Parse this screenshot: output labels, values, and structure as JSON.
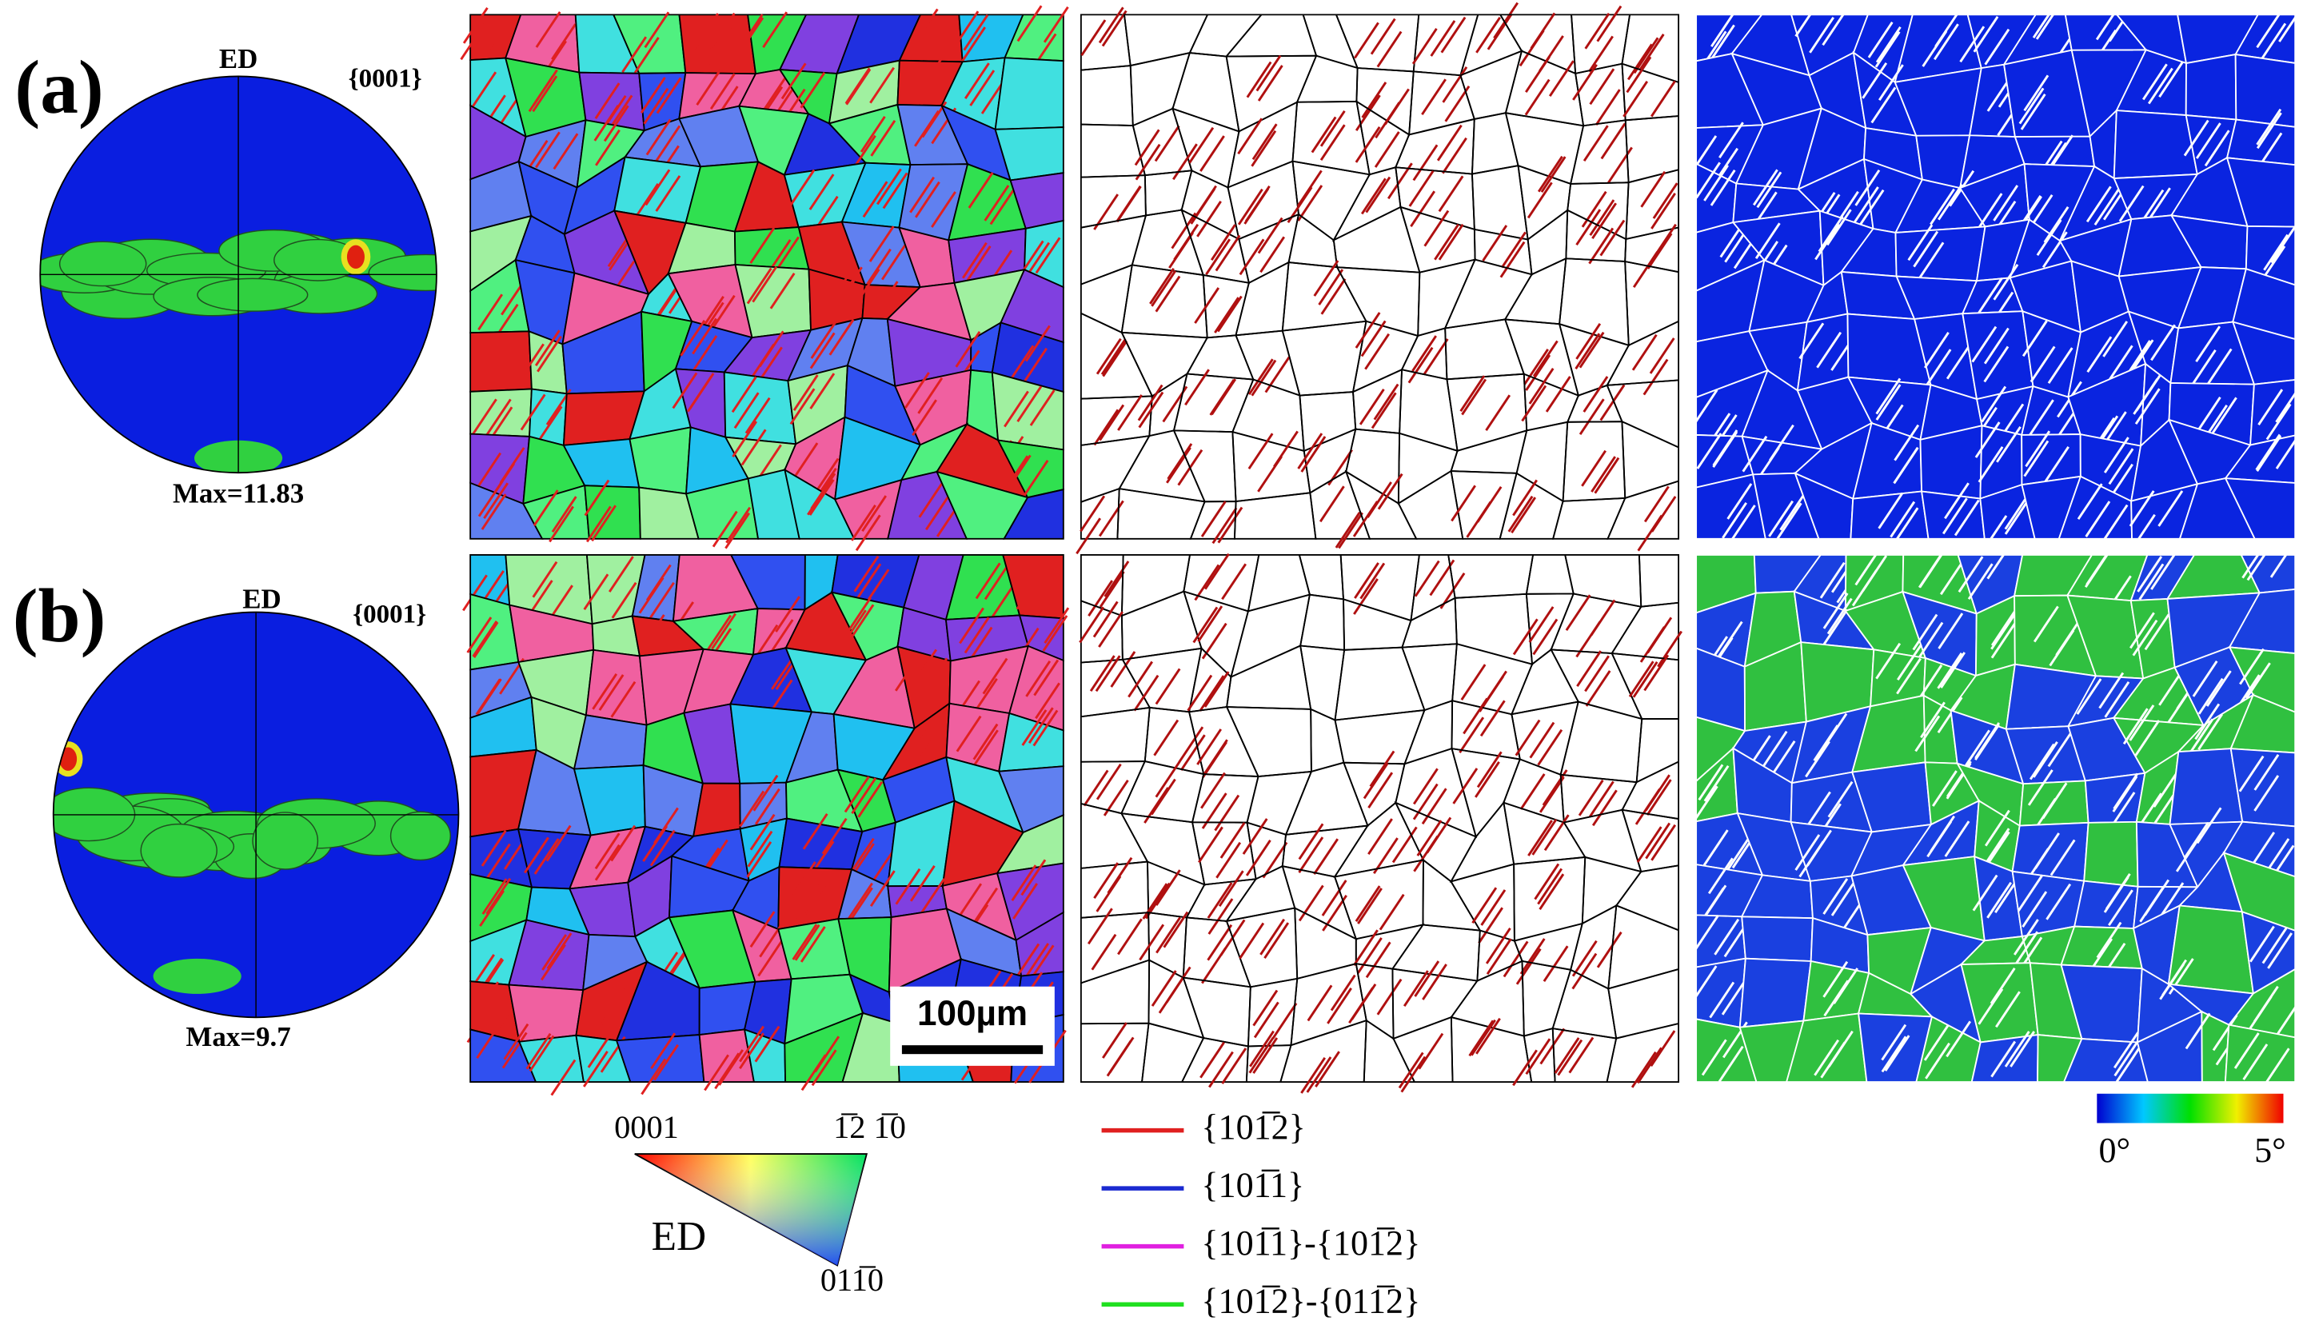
{
  "figure": {
    "rows": [
      {
        "label": "(a)",
        "pole_figure": {
          "direction": "ED",
          "plane": "{0001}",
          "max": "Max=11.83"
        }
      },
      {
        "label": "(b)",
        "pole_figure": {
          "direction": "ED",
          "plane": "{0001}",
          "max": "Max=9.7"
        }
      }
    ],
    "scale_bar": "100µm",
    "ipf_key": {
      "top_left": "0001",
      "top_right": "1̅2 1̅0",
      "axis": "ED",
      "bottom": "011̅0"
    },
    "boundary_legend": [
      {
        "label": "{101̅2}",
        "color": "#e02020"
      },
      {
        "label": "{101̅1}",
        "color": "#1a2ad0"
      },
      {
        "label": "{101̅1}-{101̅2}",
        "color": "#e020e0"
      },
      {
        "label": "{101̅2}-{011̅2}",
        "color": "#20e020"
      }
    ],
    "kam_scale": {
      "min": "0°",
      "max": "5°"
    }
  }
}
